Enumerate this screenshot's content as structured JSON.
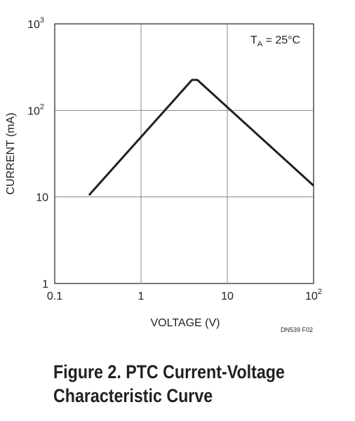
{
  "chart_data": {
    "type": "line",
    "scale": {
      "x": "log",
      "y": "log"
    },
    "xlim": [
      0.1,
      100
    ],
    "ylim": [
      1,
      1000
    ],
    "xlabel": "VOLTAGE (V)",
    "ylabel": "CURRENT (mA)",
    "x_ticks": [
      {
        "base": "0.1",
        "exp": ""
      },
      {
        "base": "1",
        "exp": ""
      },
      {
        "base": "10",
        "exp": ""
      },
      {
        "base": "10",
        "exp": "2"
      }
    ],
    "y_ticks": [
      {
        "base": "1",
        "exp": ""
      },
      {
        "base": "10",
        "exp": ""
      },
      {
        "base": "10",
        "exp": "2"
      },
      {
        "base": "10",
        "exp": "3"
      }
    ],
    "grid": true,
    "annotation": {
      "t": "T",
      "sub": "A",
      "rest": " = 25°C"
    },
    "series": [
      {
        "x": [
          0.25,
          3.9,
          4.5,
          100
        ],
        "y": [
          10.5,
          225,
          225,
          13.5
        ]
      }
    ]
  },
  "figure_code": "DN539 F02",
  "caption": {
    "line1": "Figure 2. PTC Current-Voltage",
    "line2": "Characteristic Curve"
  }
}
